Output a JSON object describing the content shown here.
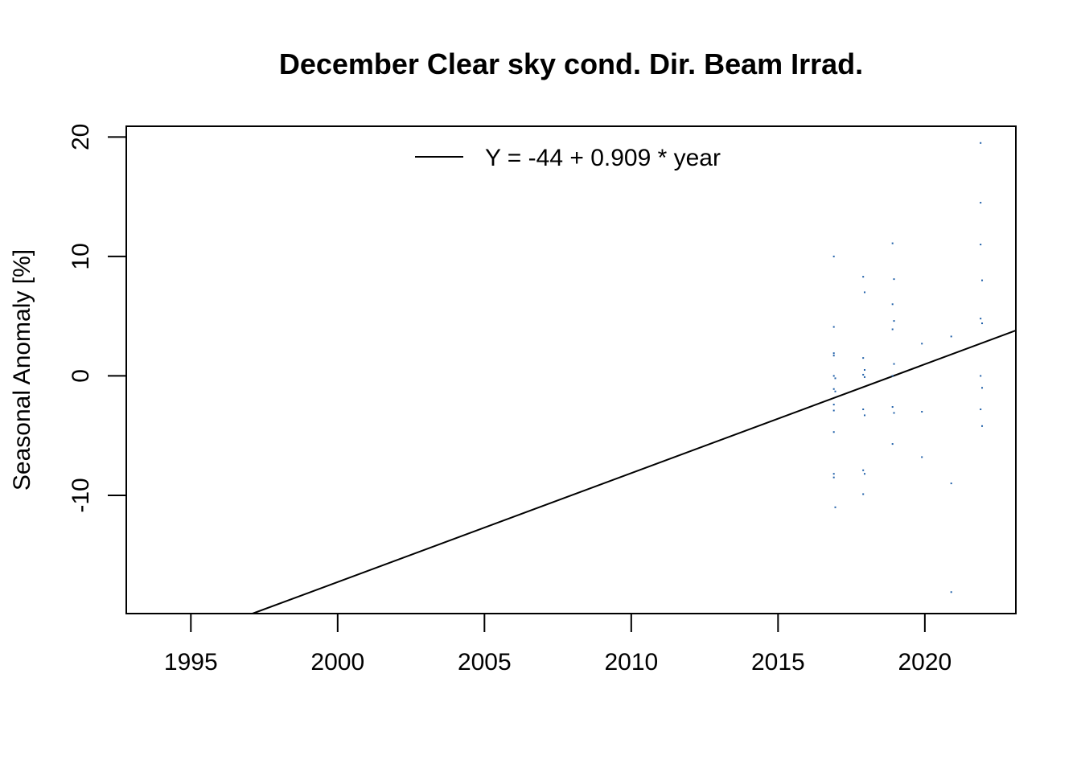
{
  "chart_data": {
    "type": "scatter",
    "title": "December Clear sky cond. Dir. Beam Irrad.",
    "xlabel": "",
    "ylabel": "Seasonal Anomaly [%]",
    "xlim": [
      1992.8,
      2023.1
    ],
    "ylim": [
      -19.9,
      20.9
    ],
    "x_ticks": [
      1995,
      2000,
      2005,
      2010,
      2015,
      2020
    ],
    "y_ticks": [
      -10,
      0,
      10,
      20
    ],
    "grid": false,
    "legend": {
      "position": "top-center",
      "entries": [
        "Y = -44 + 0.909 * year"
      ]
    },
    "point_color": "#1f5fa8",
    "trend": {
      "label": "Y = -44 + 0.909 * year",
      "x": [
        1997.1,
        2023.1
      ],
      "y": [
        -19.9,
        3.8
      ]
    },
    "points": [
      [
        2016.9,
        10.0
      ],
      [
        2016.9,
        4.1
      ],
      [
        2016.9,
        1.9
      ],
      [
        2016.9,
        1.7
      ],
      [
        2016.9,
        0.0
      ],
      [
        2016.95,
        -0.2
      ],
      [
        2016.9,
        -1.1
      ],
      [
        2016.95,
        -1.3
      ],
      [
        2016.9,
        -2.4
      ],
      [
        2016.9,
        -2.9
      ],
      [
        2016.9,
        -4.7
      ],
      [
        2016.9,
        -8.2
      ],
      [
        2016.9,
        -8.5
      ],
      [
        2016.95,
        -11.0
      ],
      [
        2017.9,
        8.3
      ],
      [
        2017.95,
        7.0
      ],
      [
        2017.9,
        1.5
      ],
      [
        2017.95,
        0.5
      ],
      [
        2017.9,
        0.1
      ],
      [
        2017.95,
        -0.1
      ],
      [
        2017.9,
        -2.8
      ],
      [
        2017.95,
        -3.3
      ],
      [
        2017.9,
        -7.9
      ],
      [
        2017.95,
        -8.2
      ],
      [
        2017.9,
        -9.9
      ],
      [
        2018.9,
        11.1
      ],
      [
        2018.95,
        8.1
      ],
      [
        2018.9,
        6.0
      ],
      [
        2018.95,
        4.6
      ],
      [
        2018.9,
        3.9
      ],
      [
        2018.95,
        1.0
      ],
      [
        2018.9,
        0.0
      ],
      [
        2018.9,
        -2.6
      ],
      [
        2018.95,
        -3.1
      ],
      [
        2018.9,
        -5.7
      ],
      [
        2019.9,
        2.7
      ],
      [
        2019.9,
        -3.0
      ],
      [
        2019.9,
        -6.8
      ],
      [
        2020.9,
        3.3
      ],
      [
        2020.9,
        -9.0
      ],
      [
        2020.9,
        -18.1
      ],
      [
        2021.9,
        19.5
      ],
      [
        2021.9,
        14.5
      ],
      [
        2021.9,
        11.0
      ],
      [
        2021.95,
        8.0
      ],
      [
        2021.9,
        4.8
      ],
      [
        2021.95,
        4.4
      ],
      [
        2021.9,
        0.0
      ],
      [
        2021.95,
        -1.0
      ],
      [
        2021.9,
        -2.8
      ],
      [
        2021.95,
        -4.2
      ]
    ]
  }
}
